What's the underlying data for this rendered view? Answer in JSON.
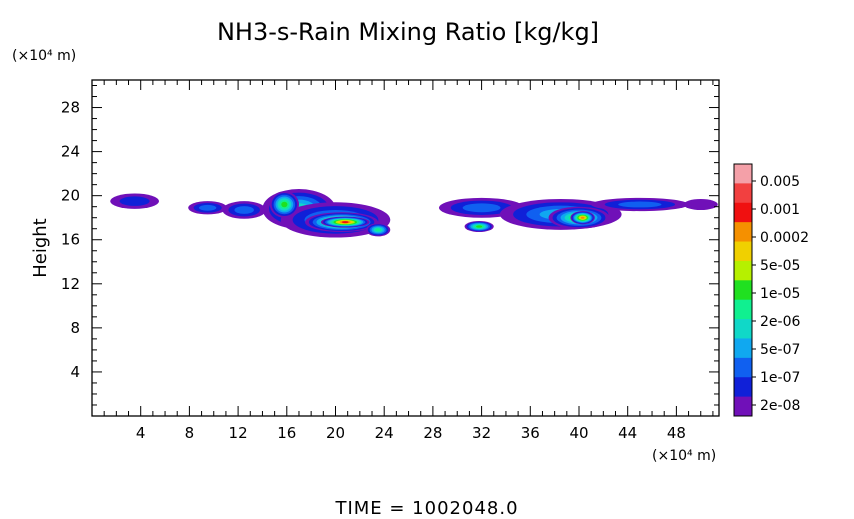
{
  "chart_data": {
    "type": "heatmap",
    "title": "NH3-s-Rain Mixing Ratio [kg/kg]",
    "ylabel": "Height",
    "x_unit": "(×10⁴ m)",
    "y_unit": "(×10⁴ m)",
    "xlim": [
      0,
      51.5
    ],
    "ylim": [
      0,
      30.5
    ],
    "x_ticks": [
      "4",
      "8",
      "12",
      "16",
      "20",
      "24",
      "28",
      "32",
      "36",
      "40",
      "44",
      "48"
    ],
    "y_ticks": [
      "4",
      "8",
      "12",
      "16",
      "20",
      "24",
      "28"
    ],
    "time_label": "TIME  =  1002048.0",
    "colorbar": {
      "labels": [
        "0.005",
        "0.001",
        "0.0002",
        "5e-05",
        "1e-05",
        "2e-06",
        "5e-07",
        "1e-07",
        "2e-08"
      ],
      "colors": [
        "#f4a0a8",
        "#f24040",
        "#f01010",
        "#f59000",
        "#f0d000",
        "#b6f000",
        "#20e020",
        "#10f090",
        "#10d8c8",
        "#10a8f0",
        "#1060f0",
        "#1020d8",
        "#7010b8"
      ]
    },
    "field": {
      "description_levels_index": "0=2e-08 (purple) ... 12=0.005 (pink)",
      "blobs": [
        {
          "x": 3.5,
          "y": 19.5,
          "rx": 2.0,
          "ry": 0.7,
          "level": 1
        },
        {
          "x": 9.5,
          "y": 18.9,
          "rx": 1.6,
          "ry": 0.6,
          "level": 2
        },
        {
          "x": 12.5,
          "y": 18.7,
          "rx": 1.8,
          "ry": 0.8,
          "level": 2
        },
        {
          "x": 17.0,
          "y": 18.8,
          "rx": 3.0,
          "ry": 1.8,
          "level": 4
        },
        {
          "x": 20.0,
          "y": 17.8,
          "rx": 4.5,
          "ry": 1.6,
          "level": 3
        },
        {
          "x": 15.8,
          "y": 19.2,
          "rx": 1.2,
          "ry": 1.2,
          "level": 6
        },
        {
          "x": 20.5,
          "y": 17.6,
          "rx": 3.0,
          "ry": 0.9,
          "level": 8
        },
        {
          "x": 20.8,
          "y": 17.6,
          "rx": 2.0,
          "ry": 0.5,
          "level": 10
        },
        {
          "x": 23.5,
          "y": 16.9,
          "rx": 1.0,
          "ry": 0.6,
          "level": 5
        },
        {
          "x": 32.0,
          "y": 18.9,
          "rx": 3.5,
          "ry": 0.9,
          "level": 2
        },
        {
          "x": 31.8,
          "y": 17.2,
          "rx": 1.2,
          "ry": 0.5,
          "level": 6
        },
        {
          "x": 38.5,
          "y": 18.3,
          "rx": 5.0,
          "ry": 1.4,
          "level": 3
        },
        {
          "x": 40.0,
          "y": 18.0,
          "rx": 2.5,
          "ry": 1.0,
          "level": 6
        },
        {
          "x": 40.3,
          "y": 18.0,
          "rx": 1.0,
          "ry": 0.6,
          "level": 9
        },
        {
          "x": 45.0,
          "y": 19.2,
          "rx": 4.0,
          "ry": 0.6,
          "level": 2
        },
        {
          "x": 50.0,
          "y": 19.2,
          "rx": 1.4,
          "ry": 0.5,
          "level": 0
        }
      ]
    }
  }
}
